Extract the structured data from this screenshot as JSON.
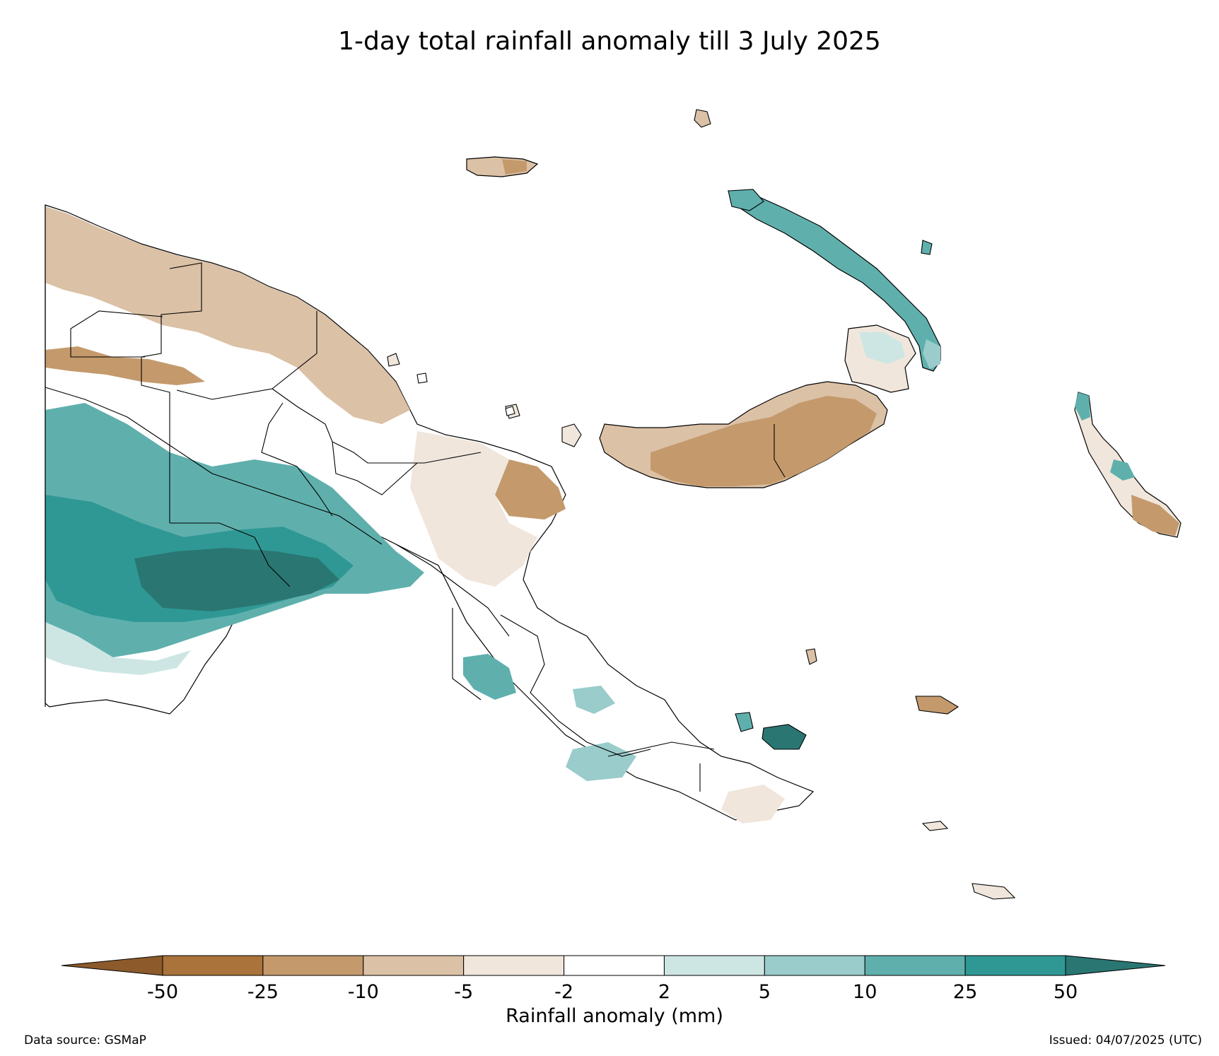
{
  "title": "1-day total rainfall anomaly till 3 July 2025",
  "colorbar": {
    "label": "Rainfall anomaly (mm)",
    "ticks": [
      "-50",
      "-25",
      "-10",
      "-5",
      "-2",
      "2",
      "5",
      "10",
      "25",
      "50"
    ],
    "bins": [
      {
        "range": "< -50",
        "color": "#8c5a2b"
      },
      {
        "range": "-50 to -25",
        "color": "#a9733b"
      },
      {
        "range": "-25 to -10",
        "color": "#c49a6c"
      },
      {
        "range": "-10 to -5",
        "color": "#dbc1a6"
      },
      {
        "range": "-5 to -2",
        "color": "#f0e6dc"
      },
      {
        "range": "-2 to 2",
        "color": "#ffffff"
      },
      {
        "range": "2 to 5",
        "color": "#cde6e4"
      },
      {
        "range": "5 to 10",
        "color": "#99cccb"
      },
      {
        "range": "10 to 25",
        "color": "#5fb0ad"
      },
      {
        "range": "25 to 50",
        "color": "#2f9894"
      },
      {
        "range": "> 50",
        "color": "#2a7673"
      }
    ],
    "extend": "both"
  },
  "footer": {
    "source": "Data source: GSMaP",
    "issued": "Issued: 04/07/2025 (UTC)"
  }
}
